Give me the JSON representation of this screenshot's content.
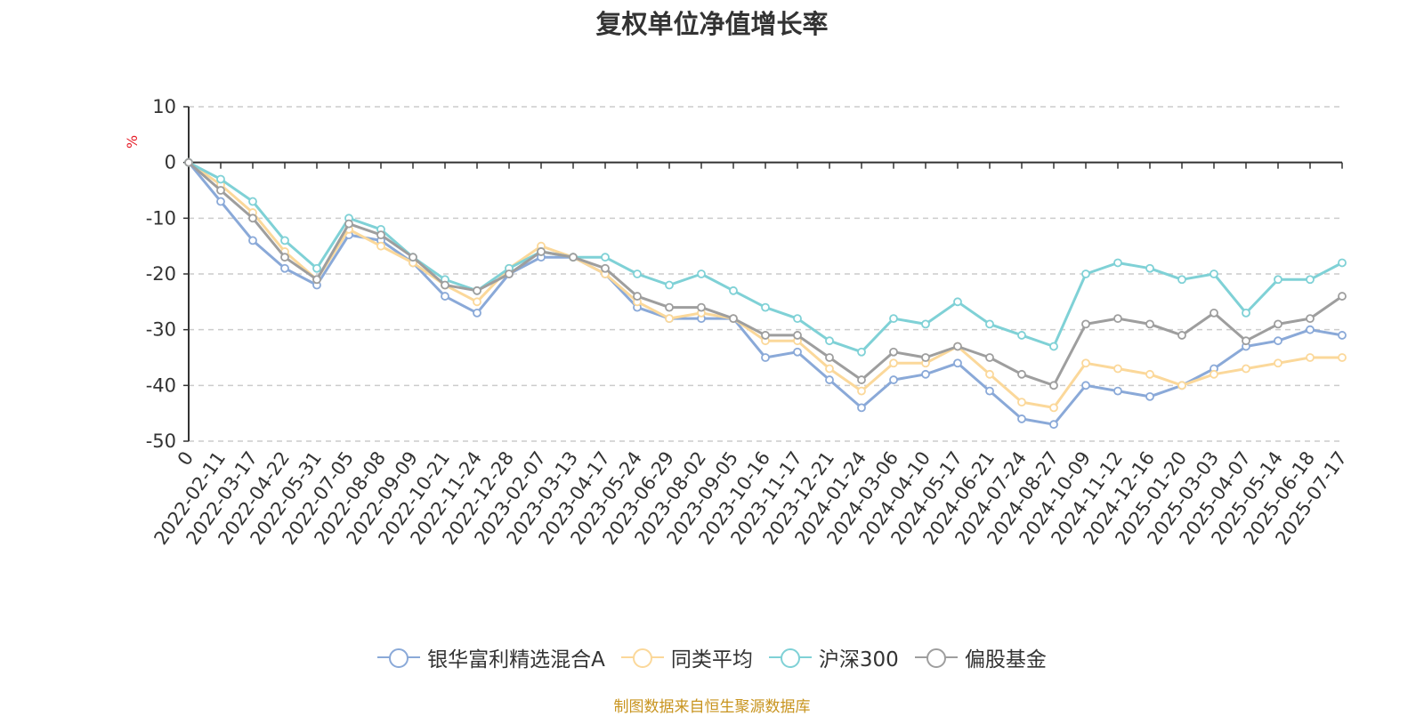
{
  "chart_data": {
    "type": "line",
    "title": "复权单位净值增长率",
    "ylabel": "%",
    "ylim": [
      -50,
      10
    ],
    "yticks": [
      10,
      0,
      -10,
      -20,
      -30,
      -40,
      -50
    ],
    "grid": true,
    "legend_position": "bottom",
    "x_labels": [
      "0",
      "2022-02-11",
      "2022-03-17",
      "2022-04-22",
      "2022-05-31",
      "2022-07-05",
      "2022-08-08",
      "2022-09-09",
      "2022-10-21",
      "2022-11-24",
      "2022-12-28",
      "2023-02-07",
      "2023-03-13",
      "2023-04-17",
      "2023-05-24",
      "2023-06-29",
      "2023-08-02",
      "2023-09-05",
      "2023-10-16",
      "2023-11-17",
      "2023-12-21",
      "2024-01-24",
      "2024-03-06",
      "2024-04-10",
      "2024-05-17",
      "2024-06-21",
      "2024-07-24",
      "2024-08-27",
      "2024-10-09",
      "2024-11-12",
      "2024-12-16",
      "2025-01-20",
      "2025-03-03",
      "2025-04-07",
      "2025-05-14",
      "2025-06-18",
      "2025-07-17"
    ],
    "series": [
      {
        "name": "银华富利精选混合A",
        "color": "#8aa9d8",
        "values": [
          0,
          -7,
          -14,
          -19,
          -22,
          -13,
          -14,
          -18,
          -24,
          -27,
          -20,
          -17,
          -17,
          -20,
          -26,
          -28,
          -28,
          -28,
          -35,
          -34,
          -39,
          -44,
          -39,
          -38,
          -36,
          -41,
          -46,
          -47,
          -40,
          -41,
          -42,
          -40,
          -37,
          -33,
          -32,
          -30,
          -31
        ]
      },
      {
        "name": "同类平均",
        "color": "#fbd89a",
        "values": [
          0,
          -4,
          -9,
          -16,
          -21,
          -12,
          -15,
          -18,
          -22,
          -25,
          -19,
          -15,
          -17,
          -20,
          -25,
          -28,
          -27,
          -28,
          -32,
          -32,
          -37,
          -41,
          -36,
          -36,
          -33,
          -38,
          -43,
          -44,
          -36,
          -37,
          -38,
          -40,
          -38,
          -37,
          -36,
          -35,
          -35
        ]
      },
      {
        "name": "沪深300",
        "color": "#7fd1d6",
        "values": [
          0,
          -3,
          -7,
          -14,
          -19,
          -10,
          -12,
          -17,
          -21,
          -23,
          -19,
          -16,
          -17,
          -17,
          -20,
          -22,
          -20,
          -23,
          -26,
          -28,
          -32,
          -34,
          -28,
          -29,
          -25,
          -29,
          -31,
          -33,
          -20,
          -18,
          -19,
          -21,
          -20,
          -27,
          -21,
          -21,
          -18
        ]
      },
      {
        "name": "偏股基金",
        "color": "#9e9e9e",
        "values": [
          0,
          -5,
          -10,
          -17,
          -21,
          -11,
          -13,
          -17,
          -22,
          -23,
          -20,
          -16,
          -17,
          -19,
          -24,
          -26,
          -26,
          -28,
          -31,
          -31,
          -35,
          -39,
          -34,
          -35,
          -33,
          -35,
          -38,
          -40,
          -29,
          -28,
          -29,
          -31,
          -27,
          -32,
          -29,
          -28,
          -24
        ]
      }
    ]
  },
  "source_note": "制图数据来自恒生聚源数据库"
}
